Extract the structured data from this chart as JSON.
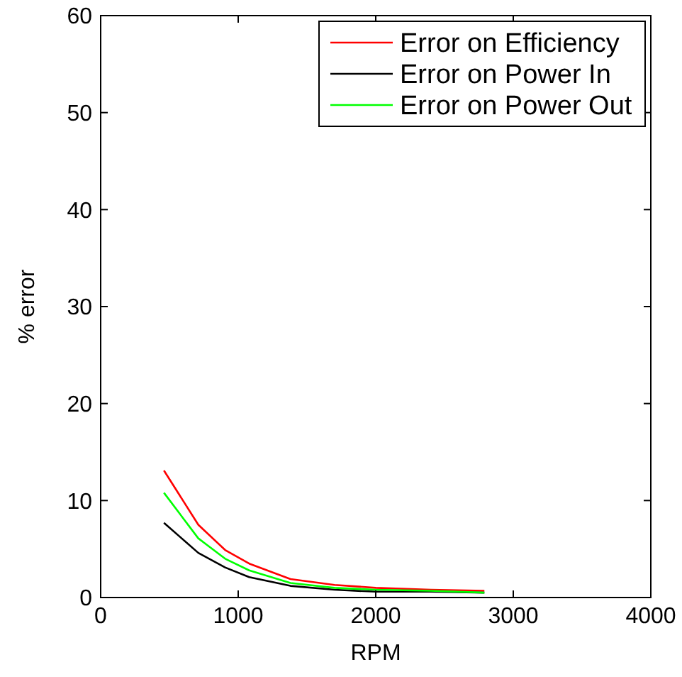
{
  "chart_data": {
    "type": "line",
    "xlabel": "RPM",
    "ylabel": "% error",
    "x": [
      460,
      710,
      905,
      1080,
      1380,
      1700,
      2000,
      2400,
      2790
    ],
    "series": [
      {
        "name": "Error on Efficiency",
        "color": "#ff0000",
        "values": [
          13.1,
          7.5,
          4.9,
          3.5,
          1.9,
          1.3,
          1.0,
          0.8,
          0.7
        ]
      },
      {
        "name": "Error on Power In",
        "color": "#000000",
        "values": [
          7.7,
          4.6,
          3.1,
          2.1,
          1.2,
          0.8,
          0.6,
          0.6,
          0.5
        ]
      },
      {
        "name": "Error on Power Out",
        "color": "#00ff00",
        "values": [
          10.8,
          6.1,
          4.0,
          2.8,
          1.5,
          1.0,
          0.8,
          0.7,
          0.5
        ]
      }
    ],
    "xlim": [
      0,
      4000
    ],
    "xticks": [
      0,
      1000,
      2000,
      3000,
      4000
    ],
    "ylim": [
      0,
      60
    ],
    "yticks": [
      0,
      10,
      20,
      30,
      40,
      50,
      60
    ],
    "legend": "top right",
    "grid": false,
    "line_style": "solid",
    "marker": "none"
  }
}
